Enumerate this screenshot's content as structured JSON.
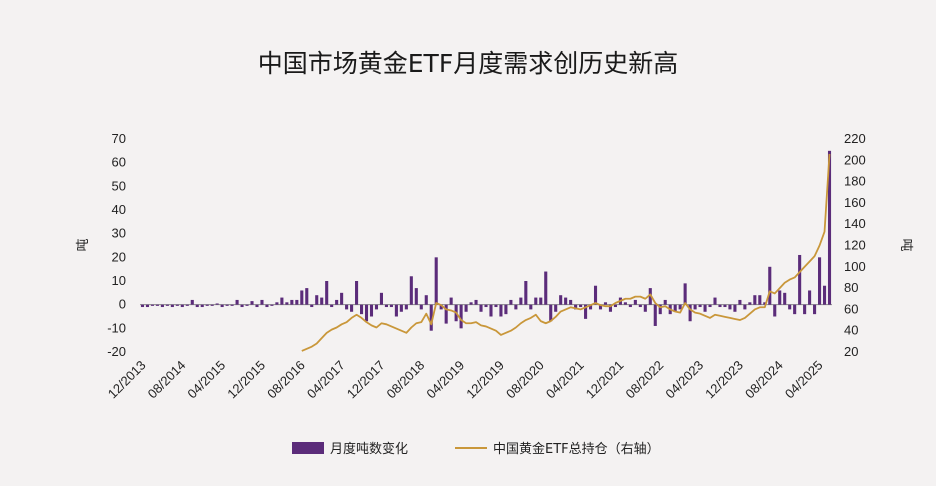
{
  "chart_data": {
    "type": "bar+line",
    "title": "中国市场黄金ETF月度需求创历史新高",
    "left_axis": {
      "label": "吨",
      "ylim": [
        -20,
        70
      ],
      "ticks": [
        -20,
        -10,
        0,
        10,
        20,
        30,
        40,
        50,
        60,
        70
      ]
    },
    "right_axis": {
      "label": "吨",
      "ylim": [
        20,
        220
      ],
      "ticks": [
        20,
        40,
        60,
        80,
        100,
        120,
        140,
        160,
        180,
        200,
        220
      ]
    },
    "x_start": "12/2013",
    "x_tick_labels": [
      "12/2013",
      "08/2014",
      "04/2015",
      "12/2015",
      "08/2016",
      "04/2017",
      "12/2017",
      "08/2018",
      "04/2019",
      "12/2019",
      "08/2020",
      "04/2021",
      "12/2021",
      "08/2022",
      "04/2023",
      "12/2023",
      "08/2024",
      "04/2025"
    ],
    "series": [
      {
        "name": "月度吨数变化",
        "kind": "bar",
        "color": "#5b2c7a",
        "values": [
          -1,
          -1,
          -0.5,
          -0.5,
          -1,
          -0.5,
          -1,
          -0.5,
          -1,
          -0.5,
          2,
          -1,
          -1,
          -0.5,
          -0.5,
          0.5,
          -1,
          -0.5,
          -0.5,
          2,
          -1,
          -0.5,
          1.5,
          -1,
          2,
          -1,
          -0.5,
          1,
          3,
          1,
          2,
          2,
          6,
          7,
          -1,
          4,
          3,
          10,
          -1,
          2,
          5,
          -2,
          -3,
          10,
          -4,
          -7,
          -5,
          -2,
          5,
          -1,
          -1,
          -5,
          -3,
          -2,
          12,
          7,
          -2,
          4,
          -11,
          20,
          -2,
          -8,
          3,
          -7,
          -10,
          -3,
          1,
          2,
          -3,
          -1,
          -5,
          -1,
          -5,
          -4,
          2,
          -2,
          3,
          10,
          -2,
          3,
          3,
          14,
          -7,
          -3,
          4,
          3,
          2,
          -2,
          -1,
          -6,
          -2,
          8,
          -2,
          1,
          -3,
          -1,
          3,
          1,
          -1,
          2,
          -1,
          -3,
          7,
          -9,
          -4,
          2,
          -4,
          -3,
          -2,
          9,
          -7,
          -2,
          -1,
          -3,
          -1,
          3,
          -1,
          -1,
          -2,
          -3,
          2,
          -2,
          1,
          4,
          4,
          1,
          16,
          -5,
          6,
          5,
          -2,
          -4,
          21,
          -4,
          6,
          -4,
          20,
          8,
          65
        ]
      },
      {
        "name": "中国黄金ETF总持仓（右轴）",
        "kind": "line",
        "color": "#c9973a",
        "axis": "right",
        "values": [
          null,
          null,
          null,
          null,
          null,
          null,
          null,
          null,
          null,
          null,
          null,
          null,
          null,
          null,
          null,
          null,
          null,
          null,
          null,
          null,
          null,
          null,
          null,
          null,
          null,
          null,
          null,
          null,
          null,
          null,
          null,
          null,
          21,
          23,
          25,
          28,
          33,
          38,
          41,
          43,
          46,
          48,
          52,
          55,
          52,
          48,
          45,
          43,
          47,
          46,
          44,
          42,
          40,
          38,
          43,
          47,
          48,
          56,
          46,
          66,
          64,
          60,
          59,
          57,
          50,
          47,
          47,
          48,
          45,
          44,
          42,
          40,
          36,
          38,
          40,
          43,
          47,
          50,
          52,
          55,
          49,
          47,
          49,
          53,
          58,
          60,
          62,
          61,
          60,
          62,
          64,
          66,
          64,
          63,
          63,
          66,
          68,
          70,
          70,
          72,
          72,
          70,
          74,
          66,
          62,
          63,
          60,
          58,
          57,
          66,
          60,
          57,
          56,
          54,
          52,
          55,
          54,
          53,
          52,
          51,
          50,
          52,
          56,
          60,
          62,
          62,
          77,
          75,
          80,
          85,
          88,
          90,
          95,
          100,
          105,
          110,
          120,
          133,
          206
        ]
      }
    ]
  }
}
